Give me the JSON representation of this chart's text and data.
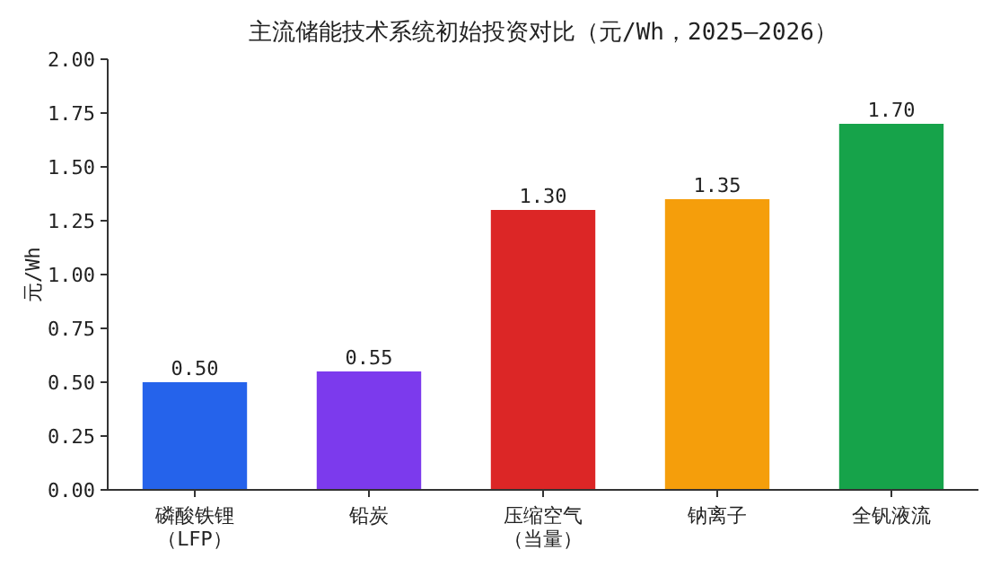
{
  "chart_data": {
    "type": "bar",
    "title": "主流储能技术系统初始投资对比（元/Wh，2025–2026）",
    "ylabel": "元/Wh",
    "categories": [
      "磷酸铁锂（LFP）",
      "铅炭",
      "压缩空气（当量）",
      "钠离子",
      "全钒液流"
    ],
    "values": [
      0.5,
      0.55,
      1.3,
      1.35,
      1.7
    ],
    "colors": [
      "#2563eb",
      "#7c3aed",
      "#dc2626",
      "#f59e0b",
      "#16a34a"
    ],
    "value_labels": [
      "0.50",
      "0.55",
      "1.30",
      "1.35",
      "1.70"
    ],
    "ylim": [
      0,
      2
    ],
    "yticks": [
      {
        "value": 0,
        "label": "0.00"
      },
      {
        "value": 0.25,
        "label": "0.25"
      },
      {
        "value": 0.5,
        "label": "0.50"
      },
      {
        "value": 0.75,
        "label": "0.75"
      },
      {
        "value": 1,
        "label": "1.00"
      },
      {
        "value": 1.25,
        "label": "1.25"
      },
      {
        "value": 1.5,
        "label": "1.50"
      },
      {
        "value": 1.75,
        "label": "1.75"
      },
      {
        "value": 2,
        "label": "2.00"
      }
    ],
    "grid": false
  }
}
